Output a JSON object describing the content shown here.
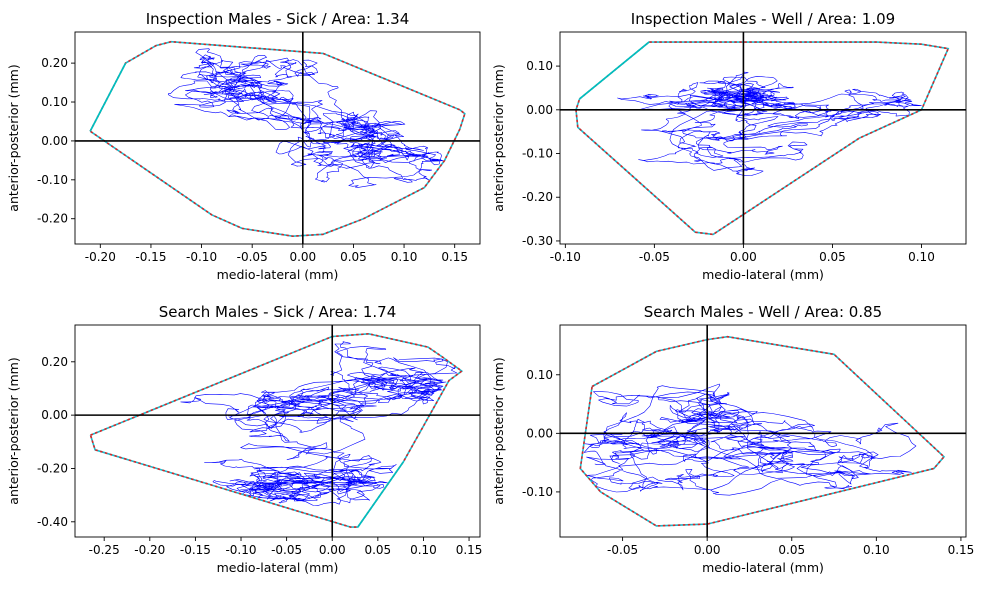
{
  "chart_data": [
    {
      "type": "line",
      "title": "Inspection Males - Sick / Area: 1.34",
      "xlabel": "medio-lateral (mm)",
      "ylabel": "anterior-posterior (mm)",
      "xlim": [
        -0.225,
        0.175
      ],
      "ylim": [
        -0.265,
        0.28
      ],
      "xticks": [
        -0.2,
        -0.15,
        -0.1,
        -0.05,
        0.0,
        0.05,
        0.1,
        0.15
      ],
      "xtick_labels": [
        "-0.20",
        "-0.15",
        "-0.10",
        "-0.05",
        "0.00",
        "0.05",
        "0.10",
        "0.15"
      ],
      "yticks": [
        -0.2,
        -0.1,
        0.0,
        0.1,
        0.2
      ],
      "ytick_labels": [
        "-0.20",
        "-0.10",
        "0.00",
        "0.10",
        "0.20"
      ],
      "grid": false,
      "legend": "none",
      "hull": {
        "x": [
          -0.21,
          -0.175,
          -0.155,
          -0.145,
          -0.13,
          0.02,
          0.155,
          0.16,
          0.155,
          0.14,
          0.12,
          0.06,
          0.02,
          -0.01,
          -0.06,
          -0.09,
          -0.21
        ],
        "y": [
          0.025,
          0.2,
          0.23,
          0.245,
          0.255,
          0.225,
          0.08,
          0.07,
          0.03,
          -0.05,
          -0.12,
          -0.2,
          -0.24,
          -0.245,
          -0.225,
          -0.19,
          0.025
        ]
      },
      "open_hull_segment": {
        "x": [
          -0.21,
          -0.175
        ],
        "y": [
          0.025,
          0.2
        ]
      },
      "trajectory": {
        "seed": 11,
        "n": 1700,
        "step": 0.0045,
        "clusters": [
          {
            "x": 0.07,
            "y": -0.04,
            "sx": 0.04,
            "sy": 0.035,
            "w": 0.5
          },
          {
            "x": -0.09,
            "y": 0.16,
            "sx": 0.045,
            "sy": 0.04,
            "w": 0.35
          },
          {
            "x": 0.04,
            "y": 0.05,
            "sx": 0.05,
            "sy": 0.08,
            "w": 0.15
          }
        ]
      }
    },
    {
      "type": "line",
      "title": "Inspection Males - Well / Area: 1.09",
      "xlabel": "medio-lateral (mm)",
      "ylabel": "anterior-posterior (mm)",
      "xlim": [
        -0.103,
        0.125
      ],
      "ylim": [
        -0.307,
        0.178
      ],
      "xticks": [
        -0.1,
        -0.05,
        0.0,
        0.05,
        0.1
      ],
      "xtick_labels": [
        "-0.10",
        "-0.05",
        "0.00",
        "0.05",
        "0.10"
      ],
      "yticks": [
        -0.3,
        -0.2,
        -0.1,
        0.0,
        0.1
      ],
      "ytick_labels": [
        "-0.30",
        "-0.20",
        "-0.10",
        "0.00",
        "0.10"
      ],
      "grid": false,
      "legend": "none",
      "hull": {
        "x": [
          -0.092,
          -0.053,
          0.075,
          0.1,
          0.115,
          0.1,
          0.065,
          -0.017,
          -0.027,
          -0.093,
          -0.094,
          -0.092
        ],
        "y": [
          0.025,
          0.155,
          0.155,
          0.15,
          0.14,
          0.0,
          -0.065,
          -0.285,
          -0.28,
          -0.04,
          0.0,
          0.025
        ]
      },
      "open_hull_segment": {
        "x": [
          -0.092,
          -0.053
        ],
        "y": [
          0.025,
          0.155
        ]
      },
      "trajectory": {
        "seed": 23,
        "n": 1500,
        "step": 0.0028,
        "clusters": [
          {
            "x": -0.01,
            "y": 0.02,
            "sx": 0.04,
            "sy": 0.04,
            "w": 0.55
          },
          {
            "x": 0.07,
            "y": 0.02,
            "sx": 0.025,
            "sy": 0.06,
            "w": 0.25
          },
          {
            "x": -0.02,
            "y": -0.12,
            "sx": 0.03,
            "sy": 0.06,
            "w": 0.2
          }
        ]
      }
    },
    {
      "type": "line",
      "title": "Search Males - Sick / Area: 1.74",
      "xlabel": "medio-lateral (mm)",
      "ylabel": "anterior-posterior (mm)",
      "xlim": [
        -0.282,
        0.162
      ],
      "ylim": [
        -0.457,
        0.338
      ],
      "xticks": [
        -0.25,
        -0.2,
        -0.15,
        -0.1,
        -0.05,
        0.0,
        0.05,
        0.1,
        0.15
      ],
      "xtick_labels": [
        "-0.25",
        "-0.20",
        "-0.15",
        "-0.10",
        "-0.05",
        "0.00",
        "0.05",
        "0.10",
        "0.15"
      ],
      "yticks": [
        -0.4,
        -0.2,
        0.0,
        0.2
      ],
      "ytick_labels": [
        "-0.40",
        "-0.20",
        "0.00",
        "0.20"
      ],
      "grid": false,
      "legend": "none",
      "hull": {
        "x": [
          -0.265,
          0.0,
          0.04,
          0.105,
          0.12,
          0.142,
          0.128,
          0.078,
          0.028,
          0.02,
          -0.26,
          -0.265
        ],
        "y": [
          -0.075,
          0.295,
          0.305,
          0.255,
          0.22,
          0.165,
          0.13,
          -0.175,
          -0.42,
          -0.42,
          -0.13,
          -0.075
        ]
      },
      "open_hull_segment": {
        "x": [
          0.078,
          0.028
        ],
        "y": [
          -0.175,
          -0.42
        ]
      },
      "trajectory": {
        "seed": 37,
        "n": 1700,
        "step": 0.0075,
        "clusters": [
          {
            "x": 0.05,
            "y": 0.1,
            "sx": 0.04,
            "sy": 0.07,
            "w": 0.5
          },
          {
            "x": -0.04,
            "y": -0.26,
            "sx": 0.03,
            "sy": 0.05,
            "w": 0.25
          },
          {
            "x": -0.1,
            "y": 0.0,
            "sx": 0.06,
            "sy": 0.06,
            "w": 0.25
          }
        ]
      }
    },
    {
      "type": "line",
      "title": "Search Males - Well / Area: 0.85",
      "xlabel": "medio-lateral (mm)",
      "ylabel": "anterior-posterior (mm)",
      "xlim": [
        -0.087,
        0.153
      ],
      "ylim": [
        -0.177,
        0.185
      ],
      "xticks": [
        -0.05,
        0.0,
        0.05,
        0.1,
        0.15
      ],
      "xtick_labels": [
        "-0.05",
        "0.00",
        "0.05",
        "0.10",
        "0.15"
      ],
      "yticks": [
        -0.1,
        0.0,
        0.1
      ],
      "ytick_labels": [
        "-0.10",
        "0.00",
        "0.10"
      ],
      "grid": false,
      "legend": "none",
      "hull": {
        "x": [
          -0.068,
          -0.03,
          0.0,
          0.012,
          0.075,
          0.14,
          0.134,
          0.0,
          -0.03,
          -0.063,
          -0.075,
          -0.068
        ],
        "y": [
          0.08,
          0.14,
          0.16,
          0.165,
          0.135,
          -0.04,
          -0.06,
          -0.155,
          -0.158,
          -0.1,
          -0.06,
          0.08
        ]
      },
      "open_hull_segment": null,
      "trajectory": {
        "seed": 53,
        "n": 1300,
        "step": 0.0038,
        "clusters": [
          {
            "x": 0.0,
            "y": 0.02,
            "sx": 0.035,
            "sy": 0.06,
            "w": 0.55
          },
          {
            "x": 0.05,
            "y": -0.05,
            "sx": 0.035,
            "sy": 0.05,
            "w": 0.3
          },
          {
            "x": -0.04,
            "y": -0.04,
            "sx": 0.02,
            "sy": 0.05,
            "w": 0.15
          }
        ]
      }
    }
  ],
  "colors": {
    "trajectory": "#0000ff",
    "hull_red": "#d62728",
    "hull_teal": "#17becf",
    "hull_open_segment": "#00bfbf",
    "axes": "#000000"
  }
}
